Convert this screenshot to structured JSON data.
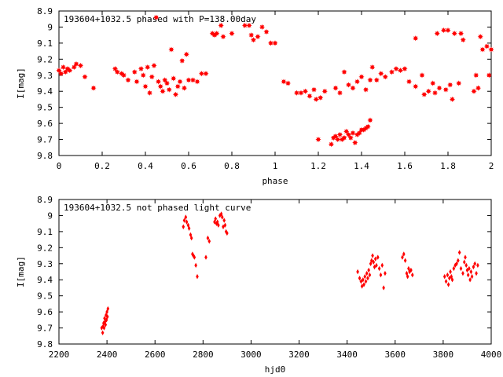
{
  "chart_data": [
    {
      "type": "scatter",
      "title": "193604+1032.5 phased with P=138.00day",
      "xlabel": "phase",
      "ylabel": "I[mag]",
      "xlim": [
        0,
        2
      ],
      "ylim": [
        8.9,
        9.8
      ],
      "y_inverted": true,
      "grid": false,
      "legend": "none",
      "color": "#ff0000",
      "marker": "filled star",
      "xticks": [
        "0",
        "0.2",
        "0.4",
        "0.6",
        "0.8",
        "1",
        "1.2",
        "1.4",
        "1.6",
        "1.8",
        "2"
      ],
      "yticks": [
        "8.9",
        "9",
        "9.1",
        "9.2",
        "9.3",
        "9.4",
        "9.5",
        "9.6",
        "9.7",
        "9.8"
      ],
      "points": [
        [
          0.0,
          9.27
        ],
        [
          0.01,
          9.29
        ],
        [
          0.02,
          9.25
        ],
        [
          0.03,
          9.28
        ],
        [
          0.04,
          9.26
        ],
        [
          0.05,
          9.27
        ],
        [
          0.07,
          9.25
        ],
        [
          0.08,
          9.23
        ],
        [
          0.1,
          9.24
        ],
        [
          0.12,
          9.31
        ],
        [
          0.16,
          9.38
        ],
        [
          0.26,
          9.26
        ],
        [
          0.27,
          9.28
        ],
        [
          0.29,
          9.29
        ],
        [
          0.3,
          9.3
        ],
        [
          0.32,
          9.33
        ],
        [
          0.35,
          9.28
        ],
        [
          0.36,
          9.34
        ],
        [
          0.38,
          9.26
        ],
        [
          0.39,
          9.3
        ],
        [
          0.4,
          9.37
        ],
        [
          0.41,
          9.25
        ],
        [
          0.42,
          9.41
        ],
        [
          0.43,
          9.31
        ],
        [
          0.44,
          9.24
        ],
        [
          0.45,
          8.94
        ],
        [
          0.46,
          9.34
        ],
        [
          0.47,
          9.37
        ],
        [
          0.48,
          9.4
        ],
        [
          0.49,
          9.33
        ],
        [
          0.5,
          9.35
        ],
        [
          0.51,
          9.39
        ],
        [
          0.52,
          9.14
        ],
        [
          0.53,
          9.32
        ],
        [
          0.54,
          9.42
        ],
        [
          0.55,
          9.37
        ],
        [
          0.56,
          9.34
        ],
        [
          0.57,
          9.21
        ],
        [
          0.58,
          9.38
        ],
        [
          0.59,
          9.17
        ],
        [
          0.6,
          9.33
        ],
        [
          0.62,
          9.33
        ],
        [
          0.64,
          9.34
        ],
        [
          0.66,
          9.29
        ],
        [
          0.68,
          9.29
        ],
        [
          0.71,
          9.04
        ],
        [
          0.72,
          9.05
        ],
        [
          0.73,
          9.04
        ],
        [
          0.75,
          8.99
        ],
        [
          0.76,
          9.06
        ],
        [
          0.8,
          9.04
        ],
        [
          0.86,
          8.99
        ],
        [
          0.88,
          8.99
        ],
        [
          0.89,
          9.05
        ],
        [
          0.9,
          9.08
        ],
        [
          0.92,
          9.06
        ],
        [
          0.94,
          9.0
        ],
        [
          0.96,
          9.03
        ],
        [
          0.98,
          9.1
        ],
        [
          1.0,
          9.1
        ],
        [
          1.04,
          9.34
        ],
        [
          1.06,
          9.35
        ],
        [
          1.1,
          9.41
        ],
        [
          1.12,
          9.41
        ],
        [
          1.14,
          9.4
        ],
        [
          1.16,
          9.43
        ],
        [
          1.18,
          9.39
        ],
        [
          1.19,
          9.45
        ],
        [
          1.2,
          9.7
        ],
        [
          1.21,
          9.44
        ],
        [
          1.23,
          9.4
        ],
        [
          1.26,
          9.73
        ],
        [
          1.27,
          9.69
        ],
        [
          1.28,
          9.68
        ],
        [
          1.29,
          9.7
        ],
        [
          1.3,
          9.67
        ],
        [
          1.31,
          9.7
        ],
        [
          1.32,
          9.69
        ],
        [
          1.33,
          9.65
        ],
        [
          1.34,
          9.67
        ],
        [
          1.35,
          9.69
        ],
        [
          1.36,
          9.66
        ],
        [
          1.37,
          9.72
        ],
        [
          1.38,
          9.67
        ],
        [
          1.39,
          9.66
        ],
        [
          1.4,
          9.64
        ],
        [
          1.41,
          9.64
        ],
        [
          1.42,
          9.63
        ],
        [
          1.43,
          9.62
        ],
        [
          1.44,
          9.58
        ],
        [
          1.28,
          9.38
        ],
        [
          1.3,
          9.41
        ],
        [
          1.32,
          9.28
        ],
        [
          1.34,
          9.36
        ],
        [
          1.36,
          9.38
        ],
        [
          1.38,
          9.34
        ],
        [
          1.4,
          9.31
        ],
        [
          1.42,
          9.39
        ],
        [
          1.44,
          9.33
        ],
        [
          1.45,
          9.25
        ],
        [
          1.47,
          9.33
        ],
        [
          1.49,
          9.29
        ],
        [
          1.51,
          9.31
        ],
        [
          1.54,
          9.28
        ],
        [
          1.56,
          9.26
        ],
        [
          1.58,
          9.27
        ],
        [
          1.6,
          9.26
        ],
        [
          1.62,
          9.34
        ],
        [
          1.65,
          9.07
        ],
        [
          1.65,
          9.37
        ],
        [
          1.68,
          9.3
        ],
        [
          1.69,
          9.42
        ],
        [
          1.71,
          9.4
        ],
        [
          1.73,
          9.35
        ],
        [
          1.74,
          9.41
        ],
        [
          1.75,
          9.04
        ],
        [
          1.76,
          9.38
        ],
        [
          1.78,
          9.02
        ],
        [
          1.79,
          9.39
        ],
        [
          1.8,
          9.02
        ],
        [
          1.81,
          9.36
        ],
        [
          1.82,
          9.45
        ],
        [
          1.83,
          9.04
        ],
        [
          1.85,
          9.35
        ],
        [
          1.86,
          9.04
        ],
        [
          1.87,
          9.08
        ],
        [
          1.92,
          9.4
        ],
        [
          1.93,
          9.3
        ],
        [
          1.94,
          9.38
        ],
        [
          1.95,
          9.06
        ],
        [
          1.96,
          9.14
        ],
        [
          1.98,
          9.12
        ],
        [
          1.99,
          9.3
        ],
        [
          2.0,
          9.14
        ]
      ]
    },
    {
      "type": "scatter",
      "title": "193604+1032.5 not phased light curve",
      "xlabel": "hjd0",
      "ylabel": "I[mag]",
      "xlim": [
        2200,
        4000
      ],
      "ylim": [
        8.9,
        9.8
      ],
      "y_inverted": true,
      "grid": false,
      "legend": "none",
      "color": "#ff0000",
      "marker": "small diamond",
      "xticks": [
        "2200",
        "2400",
        "2600",
        "2800",
        "3000",
        "3200",
        "3400",
        "3600",
        "3800",
        "4000"
      ],
      "yticks": [
        "8.9",
        "9",
        "9.1",
        "9.2",
        "9.3",
        "9.4",
        "9.5",
        "9.6",
        "9.7",
        "9.8"
      ],
      "points": [
        [
          2378,
          9.7
        ],
        [
          2382,
          9.73
        ],
        [
          2384,
          9.69
        ],
        [
          2386,
          9.67
        ],
        [
          2388,
          9.7
        ],
        [
          2390,
          9.64
        ],
        [
          2392,
          9.66
        ],
        [
          2394,
          9.68
        ],
        [
          2396,
          9.62
        ],
        [
          2398,
          9.65
        ],
        [
          2400,
          9.6
        ],
        [
          2402,
          9.63
        ],
        [
          2404,
          9.58
        ],
        [
          2718,
          9.07
        ],
        [
          2722,
          9.03
        ],
        [
          2728,
          9.01
        ],
        [
          2732,
          9.04
        ],
        [
          2738,
          9.06
        ],
        [
          2742,
          9.08
        ],
        [
          2748,
          9.12
        ],
        [
          2752,
          9.14
        ],
        [
          2756,
          9.24
        ],
        [
          2760,
          9.25
        ],
        [
          2764,
          9.26
        ],
        [
          2770,
          9.31
        ],
        [
          2776,
          9.38
        ],
        [
          2812,
          9.26
        ],
        [
          2820,
          9.14
        ],
        [
          2826,
          9.16
        ],
        [
          2848,
          9.04
        ],
        [
          2852,
          9.02
        ],
        [
          2856,
          9.05
        ],
        [
          2860,
          9.04
        ],
        [
          2864,
          9.06
        ],
        [
          2870,
          9.0
        ],
        [
          2876,
          8.99
        ],
        [
          2880,
          9.01
        ],
        [
          2884,
          9.07
        ],
        [
          2888,
          9.03
        ],
        [
          2892,
          9.06
        ],
        [
          2896,
          9.1
        ],
        [
          2900,
          9.11
        ],
        [
          3444,
          9.35
        ],
        [
          3452,
          9.39
        ],
        [
          3458,
          9.41
        ],
        [
          3462,
          9.44
        ],
        [
          3466,
          9.4
        ],
        [
          3470,
          9.43
        ],
        [
          3474,
          9.38
        ],
        [
          3478,
          9.41
        ],
        [
          3482,
          9.36
        ],
        [
          3486,
          9.39
        ],
        [
          3490,
          9.34
        ],
        [
          3494,
          9.37
        ],
        [
          3498,
          9.3
        ],
        [
          3502,
          9.28
        ],
        [
          3506,
          9.25
        ],
        [
          3510,
          9.29
        ],
        [
          3514,
          9.32
        ],
        [
          3518,
          9.27
        ],
        [
          3522,
          9.31
        ],
        [
          3528,
          9.26
        ],
        [
          3534,
          9.33
        ],
        [
          3540,
          9.37
        ],
        [
          3546,
          9.31
        ],
        [
          3552,
          9.45
        ],
        [
          3558,
          9.36
        ],
        [
          3630,
          9.26
        ],
        [
          3636,
          9.24
        ],
        [
          3642,
          9.28
        ],
        [
          3648,
          9.36
        ],
        [
          3652,
          9.38
        ],
        [
          3656,
          9.33
        ],
        [
          3660,
          9.35
        ],
        [
          3666,
          9.34
        ],
        [
          3672,
          9.37
        ],
        [
          3806,
          9.38
        ],
        [
          3812,
          9.41
        ],
        [
          3818,
          9.37
        ],
        [
          3822,
          9.43
        ],
        [
          3826,
          9.39
        ],
        [
          3830,
          9.35
        ],
        [
          3834,
          9.38
        ],
        [
          3838,
          9.4
        ],
        [
          3844,
          9.33
        ],
        [
          3850,
          9.31
        ],
        [
          3856,
          9.3
        ],
        [
          3862,
          9.28
        ],
        [
          3868,
          9.23
        ],
        [
          3874,
          9.33
        ],
        [
          3882,
          9.36
        ],
        [
          3888,
          9.29
        ],
        [
          3892,
          9.26
        ],
        [
          3896,
          9.31
        ],
        [
          3900,
          9.34
        ],
        [
          3904,
          9.37
        ],
        [
          3908,
          9.33
        ],
        [
          3912,
          9.4
        ],
        [
          3916,
          9.35
        ],
        [
          3920,
          9.38
        ],
        [
          3926,
          9.32
        ],
        [
          3932,
          9.3
        ],
        [
          3938,
          9.36
        ],
        [
          3944,
          9.31
        ]
      ]
    }
  ]
}
